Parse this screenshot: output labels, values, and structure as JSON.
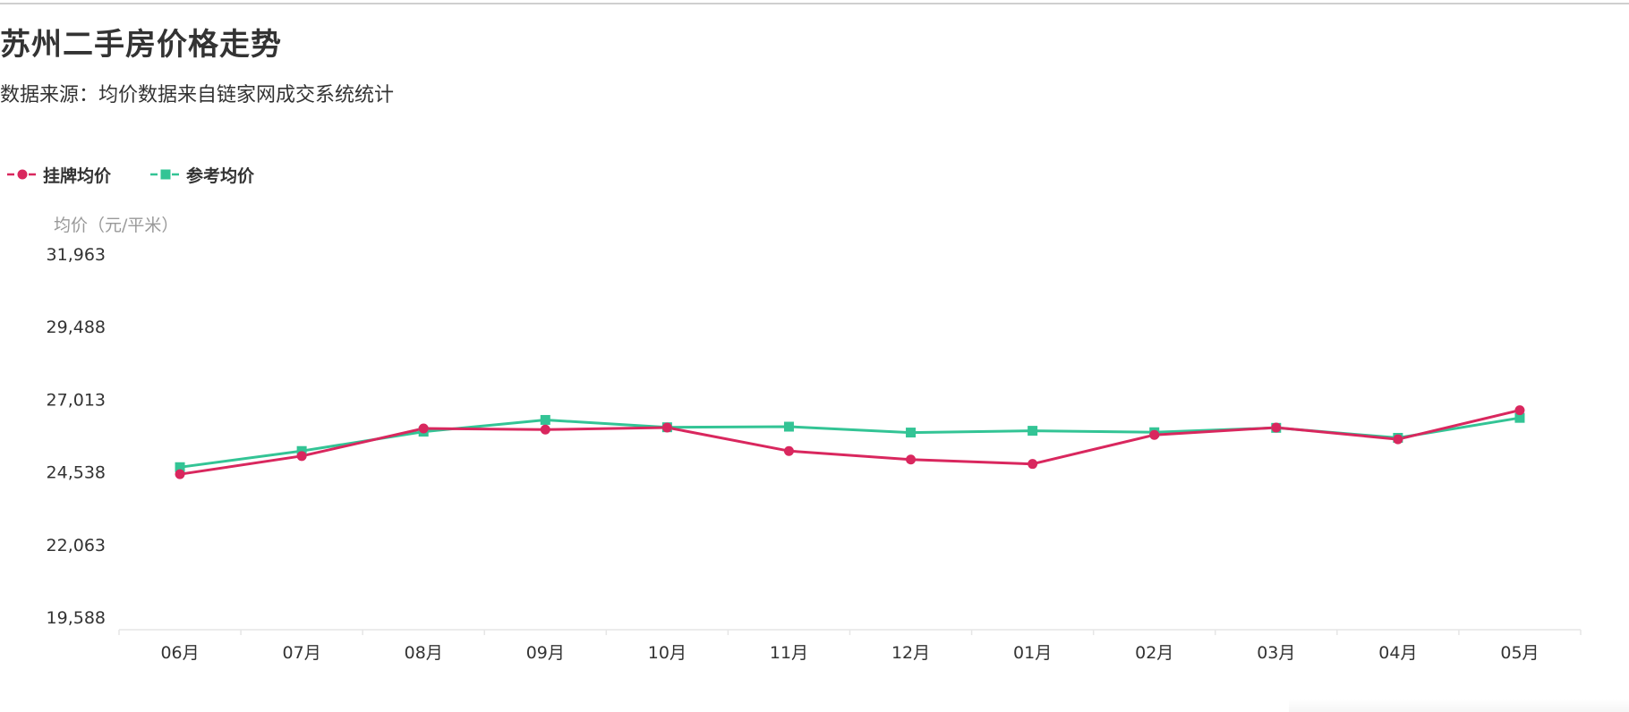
{
  "page": {
    "title": "苏州二手房价格走势",
    "subtitle": "数据来源：均价数据来自链家网成交系统统计"
  },
  "colors": {
    "listing": "#d9275e",
    "reference": "#33c495",
    "axis_text": "#333333",
    "axis_title": "#999999",
    "axis_line": "#e6e6e6"
  },
  "chart_data": {
    "type": "line",
    "title": "苏州二手房价格走势",
    "subtitle": "数据来源：均价数据来自链家网成交系统统计",
    "xlabel": "",
    "ylabel": "均价（元/平米）",
    "categories": [
      "06月",
      "07月",
      "08月",
      "09月",
      "10月",
      "11月",
      "12月",
      "01月",
      "02月",
      "03月",
      "04月",
      "05月"
    ],
    "y_ticks": [
      "19,588",
      "22,063",
      "24,538",
      "27,013",
      "29,488",
      "31,963"
    ],
    "ylim": [
      19588,
      31963
    ],
    "legend_position": "top-left",
    "grid": false,
    "series": [
      {
        "name": "挂牌均价",
        "marker": "circle",
        "color": "#d9275e",
        "values": [
          24460,
          25080,
          26020,
          25980,
          26050,
          25250,
          24960,
          24810,
          25800,
          26050,
          25650,
          26640
        ]
      },
      {
        "name": "参考均价",
        "marker": "square",
        "color": "#33c495",
        "values": [
          24700,
          25250,
          25910,
          26310,
          26060,
          26080,
          25880,
          25940,
          25890,
          26040,
          25700,
          26380
        ]
      }
    ]
  }
}
